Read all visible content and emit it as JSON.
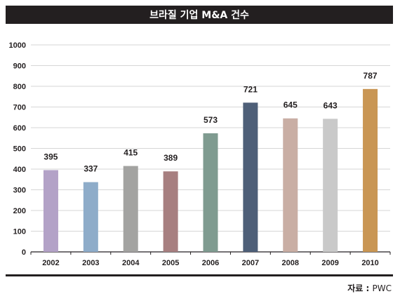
{
  "chart_data": {
    "type": "bar",
    "title": "브라질 기업 M&A 건수",
    "source_label": "자료 : ",
    "source_value": "PWC",
    "categories": [
      "2002",
      "2003",
      "2004",
      "2005",
      "2006",
      "2007",
      "2008",
      "2009",
      "2010"
    ],
    "values": [
      395,
      337,
      415,
      389,
      573,
      721,
      645,
      643,
      787
    ],
    "ylim": [
      0,
      1000
    ],
    "yticks": [
      0,
      100,
      200,
      300,
      400,
      500,
      600,
      700,
      800,
      900,
      1000
    ],
    "colors": [
      "#b3a2c7",
      "#8eacc9",
      "#a3a3a1",
      "#a77f80",
      "#7f9b90",
      "#4e5f78",
      "#c9aea4",
      "#c9c9c9",
      "#c99654"
    ],
    "grid": true,
    "legend": "none"
  }
}
